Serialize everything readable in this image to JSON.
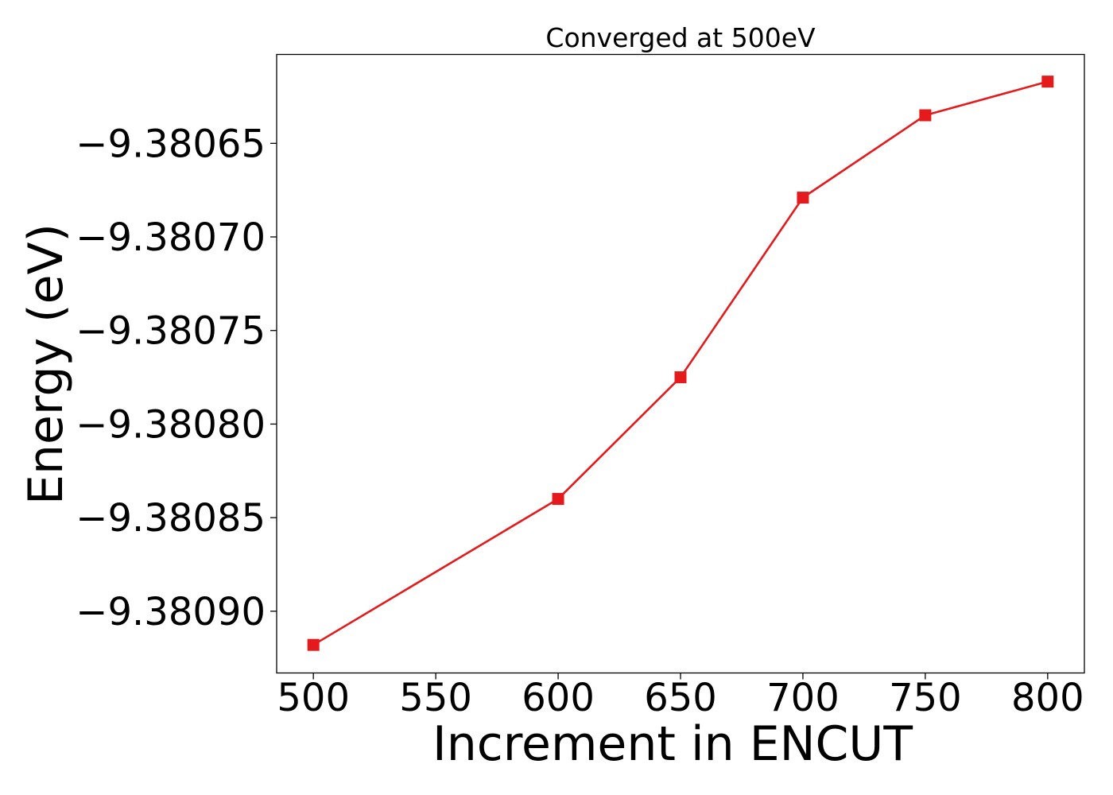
{
  "chart_data": {
    "type": "line",
    "title": "Converged at 500eV",
    "xlabel": "Increment in ENCUT",
    "ylabel": "Energy (eV)",
    "x": [
      500,
      600,
      650,
      700,
      750,
      800
    ],
    "series": [
      {
        "values": [
          -9.380918,
          -9.38084,
          -9.380775,
          -9.380679,
          -9.380635,
          -9.380617
        ],
        "color": "#e41a1c",
        "marker": "square"
      }
    ],
    "xlim": [
      485,
      815
    ],
    "ylim": [
      -9.380933,
      -9.3806025
    ],
    "xticks": [
      500,
      550,
      600,
      650,
      700,
      750,
      800
    ],
    "xtick_labels": [
      "500",
      "550",
      "600",
      "650",
      "700",
      "750",
      "800"
    ],
    "yticks": [
      -9.38065,
      -9.3807,
      -9.38075,
      -9.3808,
      -9.38085,
      -9.3809
    ],
    "ytick_labels": [
      "−9.38065",
      "−9.38070",
      "−9.38075",
      "−9.38080",
      "−9.38085",
      "−9.38090"
    ],
    "grid": false,
    "legend": "none"
  }
}
